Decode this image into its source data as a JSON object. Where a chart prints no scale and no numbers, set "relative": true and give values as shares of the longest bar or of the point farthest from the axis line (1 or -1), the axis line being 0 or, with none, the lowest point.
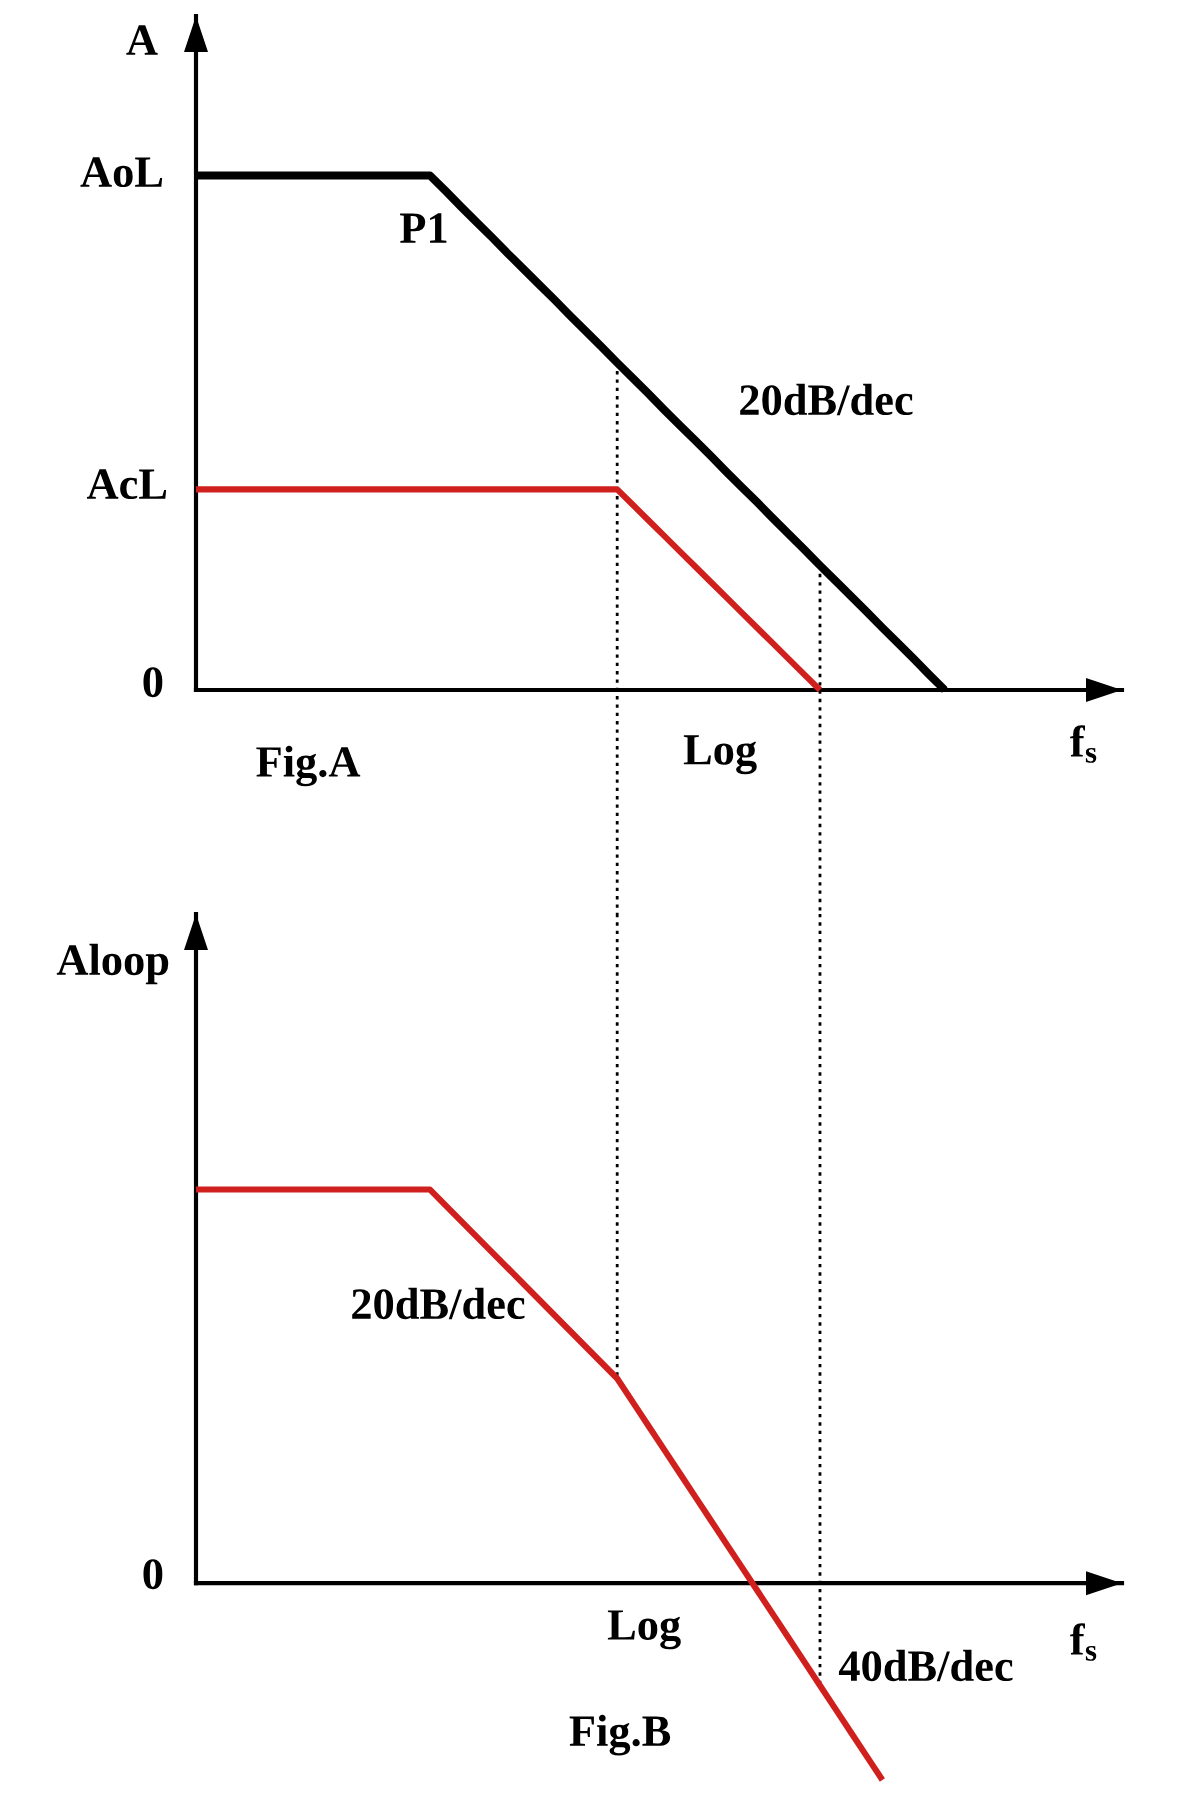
{
  "chart_data": [
    {
      "type": "line",
      "title": "Fig.A",
      "xlabel": "Log",
      "ylabel": "A",
      "relative": true,
      "categories": [
        null,
        null,
        null,
        null,
        null,
        null,
        null,
        null,
        null,
        null,
        null,
        null,
        null,
        null,
        null,
        null,
        null,
        null,
        null,
        null,
        null,
        null,
        null,
        null,
        null,
        null,
        null,
        null,
        null,
        null,
        null,
        null,
        null,
        null,
        null,
        null,
        null,
        null,
        null,
        null,
        null,
        null,
        null,
        null,
        null,
        null,
        null,
        null,
        null,
        null,
        null,
        null,
        null,
        null,
        null,
        null,
        null,
        null,
        null,
        null
      ],
      "series": [
        {
          "color": "#000000",
          "values": [
            1,
            1,
            1,
            1,
            1,
            1,
            1,
            1,
            1,
            1,
            1,
            1,
            1,
            1,
            1,
            1,
            0.97,
            0.939,
            0.909,
            0.879,
            0.848,
            0.818,
            0.788,
            0.758,
            0.727,
            0.697,
            0.667,
            0.636,
            0.606,
            0.576,
            0.545,
            0.515,
            0.485,
            0.455,
            0.424,
            0.394,
            0.364,
            0.333,
            0.303,
            0.273,
            0.242,
            0.212,
            0.182,
            0.152,
            0.121,
            0.091,
            0.061,
            0.03,
            0,
            null,
            null,
            null,
            null,
            null,
            null,
            null,
            null,
            null,
            null,
            null
          ]
        },
        {
          "color": "#d0201e",
          "values": [
            0.39,
            0.39,
            0.39,
            0.39,
            0.39,
            0.39,
            0.39,
            0.39,
            0.39,
            0.39,
            0.39,
            0.39,
            0.39,
            0.39,
            0.39,
            0.39,
            0.39,
            0.39,
            0.39,
            0.39,
            0.39,
            0.39,
            0.39,
            0.39,
            0.39,
            0.39,
            0.39,
            0.39,
            0.36,
            0.33,
            0.3,
            0.27,
            0.24,
            0.21,
            0.18,
            0.15,
            0.12,
            0.09,
            0.06,
            0.03,
            0,
            null,
            null,
            null,
            null,
            null,
            null,
            null,
            null,
            null,
            null,
            null,
            null,
            null,
            null,
            null,
            null,
            null,
            null,
            null
          ]
        }
      ],
      "annotations": [
        "AoL",
        "AcL",
        "0",
        "P1",
        "20dB/dec",
        "f$_{s}$"
      ]
    },
    {
      "type": "line",
      "title": "Fig.B",
      "xlabel": "Log",
      "ylabel": "Aloop",
      "relative": true,
      "categories": [
        null,
        null,
        null,
        null,
        null,
        null,
        null,
        null,
        null,
        null,
        null,
        null,
        null,
        null,
        null,
        null,
        null,
        null,
        null,
        null,
        null,
        null,
        null,
        null,
        null,
        null,
        null,
        null,
        null,
        null,
        null,
        null,
        null,
        null,
        null,
        null,
        null,
        null,
        null,
        null,
        null,
        null,
        null,
        null,
        null,
        null,
        null,
        null,
        null,
        null,
        null,
        null,
        null,
        null,
        null,
        null,
        null,
        null,
        null,
        null
      ],
      "series": [
        {
          "color": "#d0201e",
          "values": [
            1,
            1,
            1,
            1,
            1,
            1,
            1,
            1,
            1,
            1,
            1,
            1,
            1,
            1,
            1,
            1,
            0.96,
            0.92,
            0.88,
            0.84,
            0.8,
            0.76,
            0.72,
            0.68,
            0.64,
            0.6,
            0.56,
            0.52,
            0.46,
            0.4,
            0.34,
            0.28,
            0.22,
            0.16,
            0.1,
            0.04,
            -0.02,
            -0.08,
            -0.14,
            -0.2,
            -0.26,
            -0.32,
            -0.38,
            -0.44,
            -0.5,
            null,
            null,
            null,
            null,
            null,
            null,
            null,
            null,
            null,
            null,
            null,
            null,
            null,
            null,
            null
          ]
        }
      ],
      "annotations": [
        "0",
        "20dB/dec",
        "40dB/dec",
        "f$_{s}$"
      ]
    }
  ]
}
